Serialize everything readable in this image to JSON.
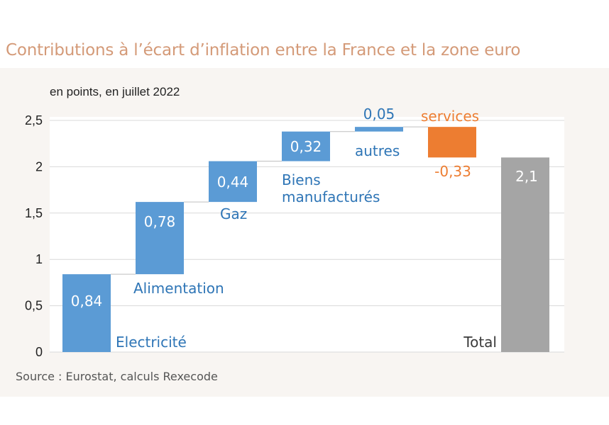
{
  "title": "Contributions à l’écart d’inflation entre la France et la zone euro",
  "source": "Source : Eurostat, calculs Rexecode",
  "colors": {
    "positive": "#5b9bd5",
    "negative": "#ed7d31",
    "total": "#a5a5a5",
    "label_blue": "#2e75b6",
    "label_orange": "#ed7d31",
    "gridline": "#d9d9d9"
  },
  "chart_data": {
    "type": "bar",
    "subtype": "waterfall",
    "subtitle": "en points, en juillet 2022",
    "categories": [
      "Electricité",
      "Alimentation",
      "Gaz",
      "Biens manufacturés",
      "autres",
      "services",
      "Total"
    ],
    "values": [
      0.84,
      0.78,
      0.44,
      0.32,
      0.05,
      -0.33,
      2.1
    ],
    "value_labels": [
      "0,84",
      "0,78",
      "0,44",
      "0,32",
      "0,05",
      "-0,33",
      "2,1"
    ],
    "ylim": [
      0,
      2.5
    ],
    "yticks": [
      0,
      0.5,
      1,
      1.5,
      2,
      2.5
    ],
    "ytick_labels": [
      "0",
      "0,5",
      "1",
      "1,5",
      "2",
      "2,5"
    ],
    "grid": true,
    "legend": "none"
  }
}
